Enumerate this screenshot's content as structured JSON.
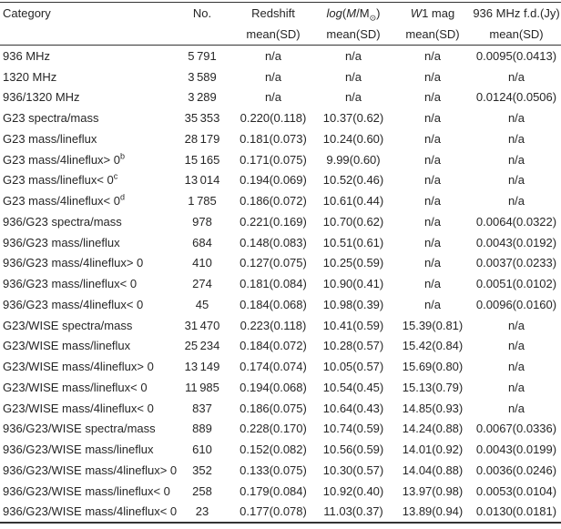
{
  "colors": {
    "background": "#ffffff",
    "text": "#262626",
    "rule": "#333333"
  },
  "table": {
    "headers": {
      "category": "Category",
      "no": "No.",
      "redshift": "Redshift",
      "logm": {
        "log": "log",
        "open": "(",
        "m1": "M",
        "slash": "/",
        "m2": "M",
        "sun": "⊙",
        "close": ")"
      },
      "w1": {
        "w": "W",
        "rest": "1 mag"
      },
      "fd": "936 MHz f.d.(Jy)",
      "mean_sd": "mean(SD)"
    },
    "rows": [
      {
        "category": "936 MHz",
        "sup": "",
        "no": "5 791",
        "redshift": "n/a",
        "logm": "n/a",
        "w1": "n/a",
        "fd": "0.0095(0.0413)"
      },
      {
        "category": "1320 MHz",
        "sup": "",
        "no": "3 589",
        "redshift": "n/a",
        "logm": "n/a",
        "w1": "n/a",
        "fd": "n/a"
      },
      {
        "category": "936/1320 MHz",
        "sup": "",
        "no": "3 289",
        "redshift": "n/a",
        "logm": "n/a",
        "w1": "n/a",
        "fd": "0.0124(0.0506)"
      },
      {
        "category": "G23 spectra/mass",
        "sup": "",
        "no": "35 353",
        "redshift": "0.220(0.118)",
        "logm": "10.37(0.62)",
        "w1": "n/a",
        "fd": "n/a"
      },
      {
        "category": "G23 mass/lineflux",
        "sup": "",
        "no": "28 179",
        "redshift": "0.181(0.073)",
        "logm": "10.24(0.60)",
        "w1": "n/a",
        "fd": "n/a"
      },
      {
        "category": "G23 mass/4lineflux> 0",
        "sup": "b",
        "no": "15 165",
        "redshift": "0.171(0.075)",
        "logm": "9.99(0.60)",
        "w1": "n/a",
        "fd": "n/a"
      },
      {
        "category": "G23 mass/lineflux< 0",
        "sup": "c",
        "no": "13 014",
        "redshift": "0.194(0.069)",
        "logm": "10.52(0.46)",
        "w1": "n/a",
        "fd": "n/a"
      },
      {
        "category": "G23 mass/4lineflux< 0",
        "sup": "d",
        "no": "1 785",
        "redshift": "0.186(0.072)",
        "logm": "10.61(0.44)",
        "w1": "n/a",
        "fd": "n/a"
      },
      {
        "category": "936/G23 spectra/mass",
        "sup": "",
        "no": "978",
        "redshift": "0.221(0.169)",
        "logm": "10.70(0.62)",
        "w1": "n/a",
        "fd": "0.0064(0.0322)"
      },
      {
        "category": "936/G23 mass/lineflux",
        "sup": "",
        "no": "684",
        "redshift": "0.148(0.083)",
        "logm": "10.51(0.61)",
        "w1": "n/a",
        "fd": "0.0043(0.0192)"
      },
      {
        "category": "936/G23 mass/4lineflux> 0",
        "sup": "",
        "no": "410",
        "redshift": "0.127(0.075)",
        "logm": "10.25(0.59)",
        "w1": "n/a",
        "fd": "0.0037(0.0233)"
      },
      {
        "category": "936/G23 mass/lineflux< 0",
        "sup": "",
        "no": "274",
        "redshift": "0.181(0.084)",
        "logm": "10.90(0.41)",
        "w1": "n/a",
        "fd": "0.0051(0.0102)"
      },
      {
        "category": "936/G23 mass/4lineflux< 0",
        "sup": "",
        "no": "45",
        "redshift": "0.184(0.068)",
        "logm": "10.98(0.39)",
        "w1": "n/a",
        "fd": "0.0096(0.0160)"
      },
      {
        "category": "G23/WISE spectra/mass",
        "sup": "",
        "no": "31 470",
        "redshift": "0.223(0.118)",
        "logm": "10.41(0.59)",
        "w1": "15.39(0.81)",
        "fd": "n/a"
      },
      {
        "category": "G23/WISE mass/lineflux",
        "sup": "",
        "no": "25 234",
        "redshift": "0.184(0.072)",
        "logm": "10.28(0.57)",
        "w1": "15.42(0.84)",
        "fd": "n/a"
      },
      {
        "category": "G23/WISE mass/4lineflux> 0",
        "sup": "",
        "no": "13 149",
        "redshift": "0.174(0.074)",
        "logm": "10.05(0.57)",
        "w1": "15.69(0.80)",
        "fd": "n/a"
      },
      {
        "category": "G23/WISE mass/lineflux< 0",
        "sup": "",
        "no": "11 985",
        "redshift": "0.194(0.068)",
        "logm": "10.54(0.45)",
        "w1": "15.13(0.79)",
        "fd": "n/a"
      },
      {
        "category": "G23/WISE mass/4lineflux< 0",
        "sup": "",
        "no": "837",
        "redshift": "0.186(0.075)",
        "logm": "10.64(0.43)",
        "w1": "14.85(0.93)",
        "fd": "n/a"
      },
      {
        "category": "936/G23/WISE spectra/mass",
        "sup": "",
        "no": "889",
        "redshift": "0.228(0.170)",
        "logm": "10.74(0.59)",
        "w1": "14.24(0.88)",
        "fd": "0.0067(0.0336)"
      },
      {
        "category": "936/G23/WISE mass/lineflux",
        "sup": "",
        "no": "610",
        "redshift": "0.152(0.082)",
        "logm": "10.56(0.59)",
        "w1": "14.01(0.92)",
        "fd": "0.0043(0.0199)"
      },
      {
        "category": "936/G23/WISE mass/4lineflux> 0",
        "sup": "",
        "no": "352",
        "redshift": "0.133(0.075)",
        "logm": "10.30(0.57)",
        "w1": "14.04(0.88)",
        "fd": "0.0036(0.0246)"
      },
      {
        "category": "936/G23/WISE mass/lineflux< 0",
        "sup": "",
        "no": "258",
        "redshift": "0.179(0.084)",
        "logm": "10.92(0.40)",
        "w1": "13.97(0.98)",
        "fd": "0.0053(0.0104)"
      },
      {
        "category": "936/G23/WISE mass/4lineflux< 0",
        "sup": "",
        "no": "23",
        "redshift": "0.177(0.078)",
        "logm": "11.03(0.37)",
        "w1": "13.89(0.94)",
        "fd": "0.0130(0.0181)"
      }
    ]
  }
}
